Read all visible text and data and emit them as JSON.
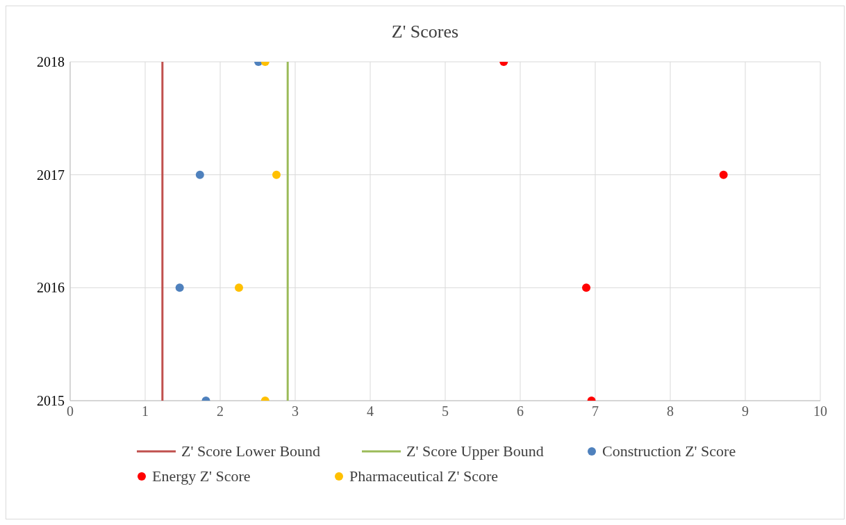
{
  "chart_data": {
    "type": "scatter",
    "title": "Z' Scores",
    "xlim": [
      0,
      10
    ],
    "xticks": [
      0,
      1,
      2,
      3,
      4,
      5,
      6,
      7,
      8,
      9,
      10
    ],
    "ylim": [
      2015,
      2018
    ],
    "yticks": [
      2015,
      2016,
      2017,
      2018
    ],
    "grid": true,
    "legend": "bottom",
    "marker": "circle",
    "series": [
      {
        "name": "Z' Score Lower Bound",
        "type": "line",
        "marker": "none",
        "color": "#c0504d",
        "x": [
          1.23,
          1.23
        ],
        "values": [
          2015,
          2018
        ]
      },
      {
        "name": "Z' Score Upper Bound",
        "type": "line",
        "marker": "none",
        "color": "#9bbb59",
        "x": [
          2.9,
          2.9
        ],
        "values": [
          2015,
          2018
        ]
      },
      {
        "name": "Construction Z' Score",
        "color": "#4f81bd",
        "x": [
          1.81,
          1.46,
          1.73,
          2.51
        ],
        "values": [
          2015,
          2016,
          2017,
          2018
        ]
      },
      {
        "name": "Energy Z' Score",
        "color": "#ff0000",
        "x": [
          6.95,
          6.88,
          8.71,
          5.78
        ],
        "values": [
          2015,
          2016,
          2017,
          2018
        ]
      },
      {
        "name": "Pharmaceutical Z' Score",
        "color": "#ffc000",
        "x": [
          2.6,
          2.25,
          2.75,
          2.6
        ],
        "values": [
          2015,
          2016,
          2017,
          2018
        ]
      }
    ]
  }
}
